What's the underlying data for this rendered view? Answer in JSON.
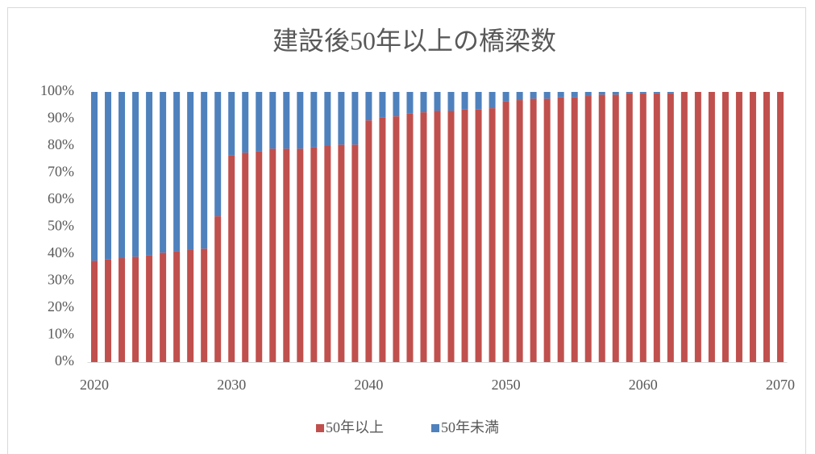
{
  "chart_data": {
    "type": "stacked_bar",
    "title": "建設後50年以上の橋梁数",
    "categories": [
      "2020",
      null,
      null,
      null,
      null,
      null,
      null,
      null,
      null,
      null,
      "2030",
      null,
      null,
      null,
      null,
      null,
      null,
      null,
      null,
      null,
      "2040",
      null,
      null,
      null,
      null,
      null,
      null,
      null,
      null,
      null,
      "2050",
      null,
      null,
      null,
      null,
      null,
      null,
      null,
      null,
      null,
      "2060",
      null,
      null,
      null,
      null,
      null,
      null,
      null,
      null,
      null,
      "2070"
    ],
    "series": [
      {
        "name": "50年以上",
        "color": "#c0504d",
        "values": [
          37.5,
          38,
          38.5,
          39,
          39.5,
          40.5,
          41,
          41.5,
          42,
          54,
          76.5,
          77.5,
          78,
          79,
          79,
          79,
          79.5,
          80,
          80.5,
          80.5,
          89.5,
          90.5,
          91,
          92,
          92.5,
          93,
          93,
          93.5,
          93.5,
          94,
          96.5,
          97,
          97.5,
          97.5,
          98,
          98,
          98.5,
          99,
          99,
          99.5,
          99.5,
          99.5,
          99.5,
          100,
          100,
          100,
          100,
          100,
          100,
          100,
          100
        ]
      },
      {
        "name": "50年未満",
        "color": "#4f81bd",
        "values": [
          62.5,
          62,
          61.5,
          61,
          60.5,
          59.5,
          59,
          58.5,
          58,
          46,
          23.5,
          22.5,
          22,
          21,
          21,
          21,
          20.5,
          20,
          19.5,
          19.5,
          10.5,
          9.5,
          9,
          8,
          7.5,
          7,
          7,
          6.5,
          6.5,
          6,
          3.5,
          3,
          2.5,
          2.5,
          2,
          2,
          1.5,
          1,
          1,
          0.5,
          0.5,
          0.5,
          0.5,
          0,
          0,
          0,
          0,
          0,
          0,
          0,
          0
        ]
      }
    ],
    "ylim": [
      0,
      100
    ],
    "yticks": [
      {
        "value": 0,
        "label": "0%"
      },
      {
        "value": 10,
        "label": "10%"
      },
      {
        "value": 20,
        "label": "20%"
      },
      {
        "value": 30,
        "label": "30%"
      },
      {
        "value": 40,
        "label": "40%"
      },
      {
        "value": 50,
        "label": "50%"
      },
      {
        "value": 60,
        "label": "60%"
      },
      {
        "value": 70,
        "label": "70%"
      },
      {
        "value": 80,
        "label": "80%"
      },
      {
        "value": 90,
        "label": "90%"
      },
      {
        "value": 100,
        "label": "100%"
      }
    ],
    "grid": false,
    "legend": "bottom"
  }
}
